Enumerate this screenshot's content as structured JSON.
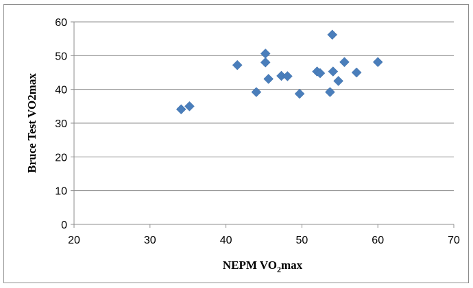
{
  "chart_data": {
    "type": "scatter",
    "title": "",
    "xlabel": "NEPM VO",
    "xlabel_subscript": "2",
    "xlabel_suffix": "max",
    "ylabel": "Bruce Test VO2max",
    "xlim": [
      20,
      70
    ],
    "ylim": [
      0,
      60
    ],
    "x_ticks": [
      20,
      30,
      40,
      50,
      60,
      70
    ],
    "y_ticks": [
      0,
      10,
      20,
      30,
      40,
      50,
      60
    ],
    "grid": "horizontal",
    "legend": "none",
    "marker": "diamond",
    "marker_color": "#4a7ebb",
    "points": [
      {
        "x": 34.1,
        "y": 34.1
      },
      {
        "x": 35.2,
        "y": 35.0
      },
      {
        "x": 41.5,
        "y": 47.2
      },
      {
        "x": 44.0,
        "y": 39.2
      },
      {
        "x": 45.2,
        "y": 50.6
      },
      {
        "x": 45.2,
        "y": 48.0
      },
      {
        "x": 45.6,
        "y": 43.1
      },
      {
        "x": 47.3,
        "y": 44.0
      },
      {
        "x": 48.1,
        "y": 43.9
      },
      {
        "x": 49.7,
        "y": 38.7
      },
      {
        "x": 52.0,
        "y": 45.3
      },
      {
        "x": 52.4,
        "y": 44.8
      },
      {
        "x": 53.7,
        "y": 39.2
      },
      {
        "x": 54.0,
        "y": 56.2
      },
      {
        "x": 54.1,
        "y": 45.3
      },
      {
        "x": 54.8,
        "y": 42.5
      },
      {
        "x": 55.6,
        "y": 48.1
      },
      {
        "x": 57.2,
        "y": 45.0
      },
      {
        "x": 60.0,
        "y": 48.1
      }
    ]
  }
}
